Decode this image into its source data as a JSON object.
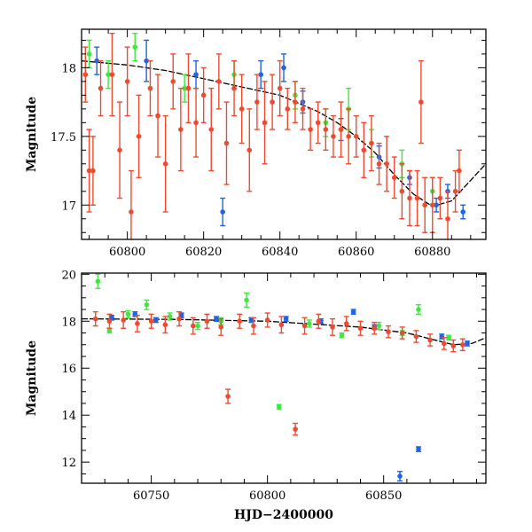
{
  "chart_data": [
    {
      "type": "scatter",
      "title": "",
      "xlabel": "",
      "ylabel": "Magnitude",
      "xlim": [
        60788,
        60894
      ],
      "ylim": [
        18.28,
        16.75
      ],
      "y_inverted": true,
      "grid": false,
      "legend": "none",
      "xticks": [
        60800,
        60820,
        60840,
        60860,
        60880
      ],
      "yticks": [
        17,
        17.5,
        18
      ],
      "ytick_labels": [
        "17",
        "17.5",
        "18"
      ],
      "colors": {
        "red": "#f04a2e",
        "green": "#3ee83e",
        "blue": "#1f63e6",
        "curve": "#000000"
      },
      "model_curve": {
        "x": [
          60788,
          60800,
          60810,
          60820,
          60830,
          60840,
          60850,
          60855,
          60860,
          60865,
          60870,
          60875,
          60880,
          60885,
          60890,
          60894
        ],
        "y": [
          18.05,
          18.02,
          17.98,
          17.92,
          17.86,
          17.8,
          17.68,
          17.6,
          17.5,
          17.38,
          17.22,
          17.08,
          16.99,
          17.03,
          17.18,
          17.3
        ]
      },
      "series": [
        {
          "color": "red",
          "points": [
            {
              "x": 60789,
              "y": 17.95,
              "err": 0.2
            },
            {
              "x": 60790,
              "y": 17.25,
              "err": 0.3
            },
            {
              "x": 60791,
              "y": 17.25,
              "err": 0.25
            },
            {
              "x": 60793,
              "y": 17.85,
              "err": 0.2
            },
            {
              "x": 60796,
              "y": 17.95,
              "err": 0.3
            },
            {
              "x": 60798,
              "y": 17.4,
              "err": 0.35
            },
            {
              "x": 60800,
              "y": 17.9,
              "err": 0.25
            },
            {
              "x": 60801,
              "y": 16.95,
              "err": 0.3
            },
            {
              "x": 60803,
              "y": 17.5,
              "err": 0.3
            },
            {
              "x": 60806,
              "y": 17.85,
              "err": 0.2
            },
            {
              "x": 60808,
              "y": 17.65,
              "err": 0.3
            },
            {
              "x": 60810,
              "y": 17.3,
              "err": 0.35
            },
            {
              "x": 60812,
              "y": 17.9,
              "err": 0.2
            },
            {
              "x": 60814,
              "y": 17.55,
              "err": 0.3
            },
            {
              "x": 60816,
              "y": 17.85,
              "err": 0.25
            },
            {
              "x": 60818,
              "y": 17.6,
              "err": 0.25
            },
            {
              "x": 60820,
              "y": 17.8,
              "err": 0.2
            },
            {
              "x": 60822,
              "y": 17.55,
              "err": 0.3
            },
            {
              "x": 60824,
              "y": 17.9,
              "err": 0.2
            },
            {
              "x": 60826,
              "y": 17.45,
              "err": 0.3
            },
            {
              "x": 60828,
              "y": 17.85,
              "err": 0.2
            },
            {
              "x": 60830,
              "y": 17.7,
              "err": 0.25
            },
            {
              "x": 60832,
              "y": 17.4,
              "err": 0.3
            },
            {
              "x": 60834,
              "y": 17.75,
              "err": 0.2
            },
            {
              "x": 60836,
              "y": 17.6,
              "err": 0.3
            },
            {
              "x": 60838,
              "y": 17.75,
              "err": 0.2
            },
            {
              "x": 60840,
              "y": 17.85,
              "err": 0.2
            },
            {
              "x": 60842,
              "y": 17.7,
              "err": 0.15
            },
            {
              "x": 60844,
              "y": 17.75,
              "err": 0.15
            },
            {
              "x": 60846,
              "y": 17.7,
              "err": 0.15
            },
            {
              "x": 60848,
              "y": 17.55,
              "err": 0.15
            },
            {
              "x": 60850,
              "y": 17.6,
              "err": 0.15
            },
            {
              "x": 60852,
              "y": 17.55,
              "err": 0.15
            },
            {
              "x": 60854,
              "y": 17.5,
              "err": 0.15
            },
            {
              "x": 60856,
              "y": 17.55,
              "err": 0.2
            },
            {
              "x": 60858,
              "y": 17.5,
              "err": 0.2
            },
            {
              "x": 60860,
              "y": 17.5,
              "err": 0.15
            },
            {
              "x": 60862,
              "y": 17.4,
              "err": 0.2
            },
            {
              "x": 60864,
              "y": 17.45,
              "err": 0.2
            },
            {
              "x": 60866,
              "y": 17.3,
              "err": 0.15
            },
            {
              "x": 60868,
              "y": 17.3,
              "err": 0.2
            },
            {
              "x": 60870,
              "y": 17.2,
              "err": 0.15
            },
            {
              "x": 60872,
              "y": 17.1,
              "err": 0.2
            },
            {
              "x": 60874,
              "y": 17.05,
              "err": 0.2
            },
            {
              "x": 60876,
              "y": 17.05,
              "err": 0.2
            },
            {
              "x": 60877,
              "y": 17.75,
              "err": 0.3
            },
            {
              "x": 60878,
              "y": 17.0,
              "err": 0.2
            },
            {
              "x": 60880,
              "y": 17.0,
              "err": 0.2
            },
            {
              "x": 60882,
              "y": 17.05,
              "err": 0.15
            },
            {
              "x": 60884,
              "y": 16.9,
              "err": 0.2
            },
            {
              "x": 60886,
              "y": 17.1,
              "err": 0.15
            },
            {
              "x": 60887,
              "y": 17.25,
              "err": 0.15
            }
          ]
        },
        {
          "color": "green",
          "points": [
            {
              "x": 60790,
              "y": 18.1,
              "err": 0.1
            },
            {
              "x": 60795,
              "y": 17.95,
              "err": 0.1
            },
            {
              "x": 60802,
              "y": 18.15,
              "err": 0.1
            },
            {
              "x": 60815,
              "y": 17.85,
              "err": 0.1
            },
            {
              "x": 60828,
              "y": 17.95,
              "err": 0.1
            },
            {
              "x": 60844,
              "y": 17.8,
              "err": 0.1
            },
            {
              "x": 60852,
              "y": 17.6,
              "err": 0.1
            },
            {
              "x": 60858,
              "y": 17.7,
              "err": 0.15
            },
            {
              "x": 60864,
              "y": 17.45,
              "err": 0.1
            },
            {
              "x": 60872,
              "y": 17.3,
              "err": 0.1
            },
            {
              "x": 60880,
              "y": 17.1,
              "err": 0.1
            }
          ]
        },
        {
          "color": "blue",
          "points": [
            {
              "x": 60792,
              "y": 18.05,
              "err": 0.1
            },
            {
              "x": 60805,
              "y": 18.05,
              "err": 0.15
            },
            {
              "x": 60818,
              "y": 17.95,
              "err": 0.1
            },
            {
              "x": 60825,
              "y": 16.95,
              "err": 0.1
            },
            {
              "x": 60835,
              "y": 17.95,
              "err": 0.1
            },
            {
              "x": 60841,
              "y": 18.0,
              "err": 0.1
            },
            {
              "x": 60846,
              "y": 17.75,
              "err": 0.08
            },
            {
              "x": 60856,
              "y": 17.55,
              "err": 0.08
            },
            {
              "x": 60866,
              "y": 17.35,
              "err": 0.08
            },
            {
              "x": 60874,
              "y": 17.2,
              "err": 0.05
            },
            {
              "x": 60881,
              "y": 17.0,
              "err": 0.05
            },
            {
              "x": 60884,
              "y": 17.1,
              "err": 0.05
            },
            {
              "x": 60888,
              "y": 16.95,
              "err": 0.05
            }
          ]
        }
      ]
    },
    {
      "type": "scatter",
      "title": "",
      "xlabel": "HJD−2400000",
      "ylabel": "Magnitude",
      "xlim": [
        60720,
        60894
      ],
      "ylim": [
        20.05,
        11.1
      ],
      "y_inverted": true,
      "grid": false,
      "legend": "none",
      "xticks": [
        60750,
        60800,
        60850
      ],
      "yticks": [
        12,
        14,
        16,
        18,
        20
      ],
      "ytick_labels": [
        "12",
        "14",
        "16",
        "18",
        "20"
      ],
      "colors": {
        "red": "#f04a2e",
        "green": "#3ee83e",
        "blue": "#1f63e6",
        "curve": "#000000"
      },
      "model_curve": {
        "x": [
          60720,
          60760,
          60800,
          60840,
          60860,
          60870,
          60880,
          60888,
          60894
        ],
        "y": [
          18.1,
          18.08,
          18.0,
          17.75,
          17.5,
          17.25,
          17.0,
          17.05,
          17.3
        ]
      },
      "series": [
        {
          "color": "red",
          "points": [
            {
              "x": 60726,
              "y": 18.1,
              "err": 0.3
            },
            {
              "x": 60732,
              "y": 18.0,
              "err": 0.3
            },
            {
              "x": 60738,
              "y": 18.05,
              "err": 0.35
            },
            {
              "x": 60744,
              "y": 17.9,
              "err": 0.35
            },
            {
              "x": 60750,
              "y": 18.0,
              "err": 0.3
            },
            {
              "x": 60756,
              "y": 17.85,
              "err": 0.35
            },
            {
              "x": 60762,
              "y": 18.1,
              "err": 0.3
            },
            {
              "x": 60768,
              "y": 17.8,
              "err": 0.35
            },
            {
              "x": 60774,
              "y": 18.0,
              "err": 0.3
            },
            {
              "x": 60780,
              "y": 17.75,
              "err": 0.35
            },
            {
              "x": 60783,
              "y": 14.8,
              "err": 0.3
            },
            {
              "x": 60788,
              "y": 18.0,
              "err": 0.3
            },
            {
              "x": 60794,
              "y": 17.8,
              "err": 0.35
            },
            {
              "x": 60800,
              "y": 18.05,
              "err": 0.3
            },
            {
              "x": 60806,
              "y": 17.85,
              "err": 0.35
            },
            {
              "x": 60812,
              "y": 13.4,
              "err": 0.25
            },
            {
              "x": 60816,
              "y": 17.8,
              "err": 0.35
            },
            {
              "x": 60822,
              "y": 18.0,
              "err": 0.3
            },
            {
              "x": 60828,
              "y": 17.75,
              "err": 0.35
            },
            {
              "x": 60834,
              "y": 17.9,
              "err": 0.3
            },
            {
              "x": 60840,
              "y": 17.7,
              "err": 0.3
            },
            {
              "x": 60846,
              "y": 17.7,
              "err": 0.25
            },
            {
              "x": 60852,
              "y": 17.55,
              "err": 0.25
            },
            {
              "x": 60858,
              "y": 17.5,
              "err": 0.25
            },
            {
              "x": 60864,
              "y": 17.35,
              "err": 0.25
            },
            {
              "x": 60870,
              "y": 17.2,
              "err": 0.25
            },
            {
              "x": 60876,
              "y": 17.05,
              "err": 0.25
            },
            {
              "x": 60880,
              "y": 16.95,
              "err": 0.25
            },
            {
              "x": 60884,
              "y": 17.0,
              "err": 0.25
            }
          ]
        },
        {
          "color": "green",
          "points": [
            {
              "x": 60727,
              "y": 19.7,
              "err": 0.3
            },
            {
              "x": 60732,
              "y": 17.6,
              "err": 0.1
            },
            {
              "x": 60740,
              "y": 18.3,
              "err": 0.15
            },
            {
              "x": 60748,
              "y": 18.7,
              "err": 0.2
            },
            {
              "x": 60758,
              "y": 18.2,
              "err": 0.15
            },
            {
              "x": 60770,
              "y": 17.8,
              "err": 0.15
            },
            {
              "x": 60780,
              "y": 18.0,
              "err": 0.15
            },
            {
              "x": 60791,
              "y": 18.9,
              "err": 0.3
            },
            {
              "x": 60805,
              "y": 14.35,
              "err": 0.1
            },
            {
              "x": 60818,
              "y": 17.9,
              "err": 0.15
            },
            {
              "x": 60832,
              "y": 17.4,
              "err": 0.1
            },
            {
              "x": 60848,
              "y": 17.8,
              "err": 0.15
            },
            {
              "x": 60858,
              "y": 17.5,
              "err": 0.1
            },
            {
              "x": 60865,
              "y": 18.5,
              "err": 0.2
            },
            {
              "x": 60878,
              "y": 17.3,
              "err": 0.1
            }
          ]
        },
        {
          "color": "blue",
          "points": [
            {
              "x": 60733,
              "y": 18.15,
              "err": 0.1
            },
            {
              "x": 60743,
              "y": 18.3,
              "err": 0.1
            },
            {
              "x": 60752,
              "y": 18.05,
              "err": 0.1
            },
            {
              "x": 60763,
              "y": 18.25,
              "err": 0.1
            },
            {
              "x": 60778,
              "y": 18.1,
              "err": 0.1
            },
            {
              "x": 60793,
              "y": 18.05,
              "err": 0.1
            },
            {
              "x": 60808,
              "y": 18.1,
              "err": 0.1
            },
            {
              "x": 60823,
              "y": 18.0,
              "err": 0.1
            },
            {
              "x": 60837,
              "y": 18.4,
              "err": 0.1
            },
            {
              "x": 60846,
              "y": 17.75,
              "err": 0.1
            },
            {
              "x": 60857,
              "y": 11.4,
              "err": 0.2
            },
            {
              "x": 60865,
              "y": 12.55,
              "err": 0.1
            },
            {
              "x": 60875,
              "y": 17.35,
              "err": 0.1
            },
            {
              "x": 60886,
              "y": 17.05,
              "err": 0.1
            }
          ]
        }
      ]
    }
  ]
}
